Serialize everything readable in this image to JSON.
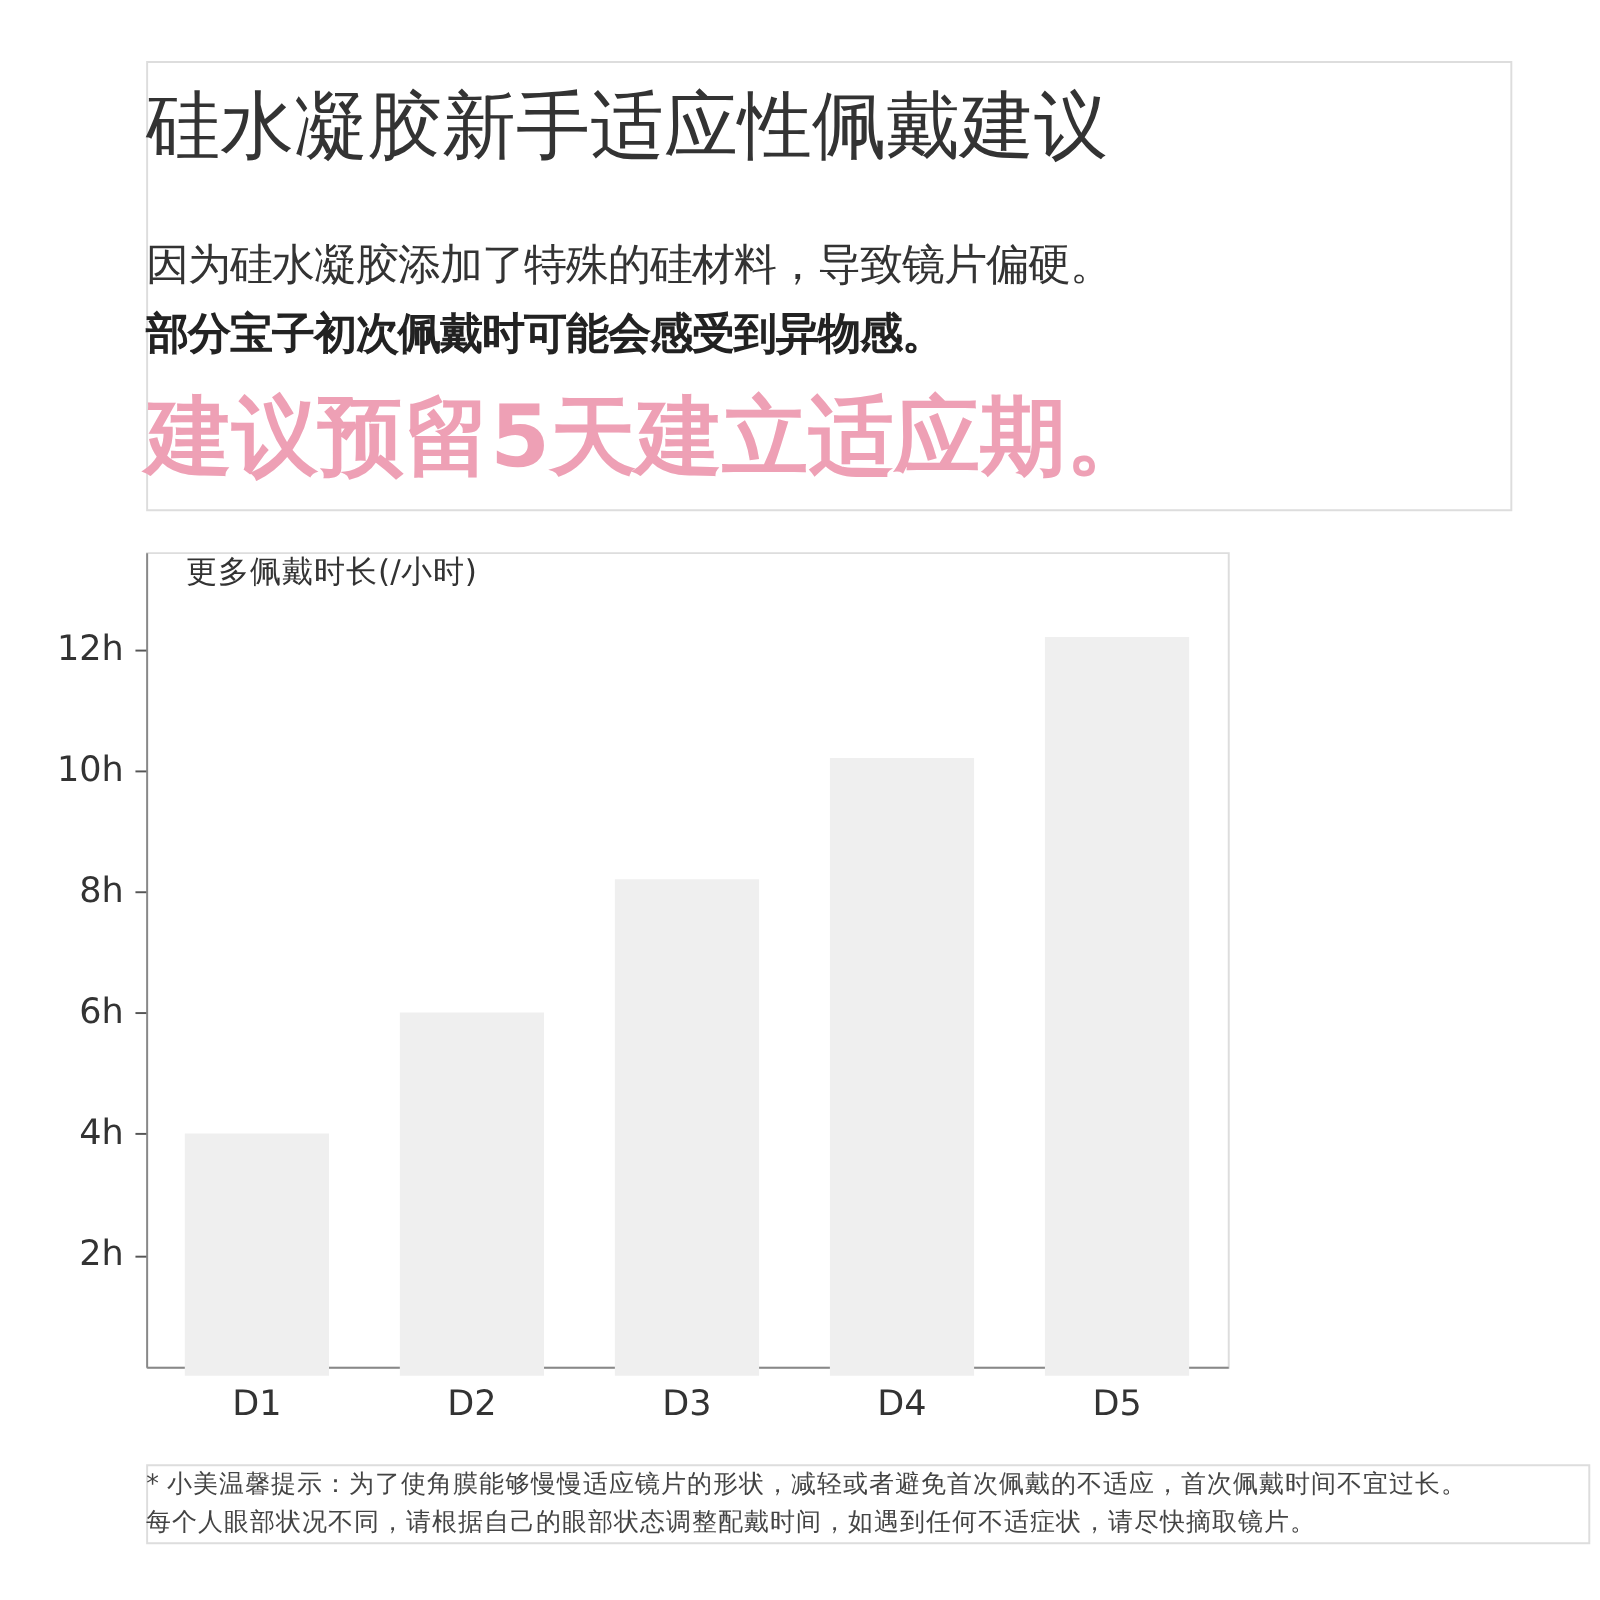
{
  "chart_data": {
    "type": "bar",
    "title": "硅水凝胶新手适应性佩戴建议",
    "ylabel": "更多佩戴时长(/小时)",
    "categories": [
      "D1",
      "D2",
      "D3",
      "D4",
      "D5"
    ],
    "values": [
      4,
      6,
      8.2,
      10.2,
      12.2
    ],
    "color": "#efefef",
    "ylim": [
      0.15,
      13.6
    ],
    "yticks": [
      {
        "value": 2,
        "label": "2h"
      },
      {
        "value": 4,
        "label": "4h"
      },
      {
        "value": 6,
        "label": "6h"
      },
      {
        "value": 8,
        "label": "8h"
      },
      {
        "value": 10,
        "label": "10h"
      },
      {
        "value": 12,
        "label": "12h"
      }
    ],
    "grid": false,
    "annotations": [
      "因为硅水凝胶添加了特殊的硅材料，导致镜片偏硬。",
      "部分宝子初次佩戴时可能会感受到异物感。",
      "建议预留5天建立适应期。",
      "* 小美温馨提示：为了使角膜能够慢慢适应镜片的形状，减轻或者避免首次佩戴的不适应，首次佩戴时间不宜过长。",
      "   每个人眼部状况不同，请根据自己的眼部状态调整配戴时间，如遇到任何不适症状，请尽快摘取镜片。"
    ]
  }
}
